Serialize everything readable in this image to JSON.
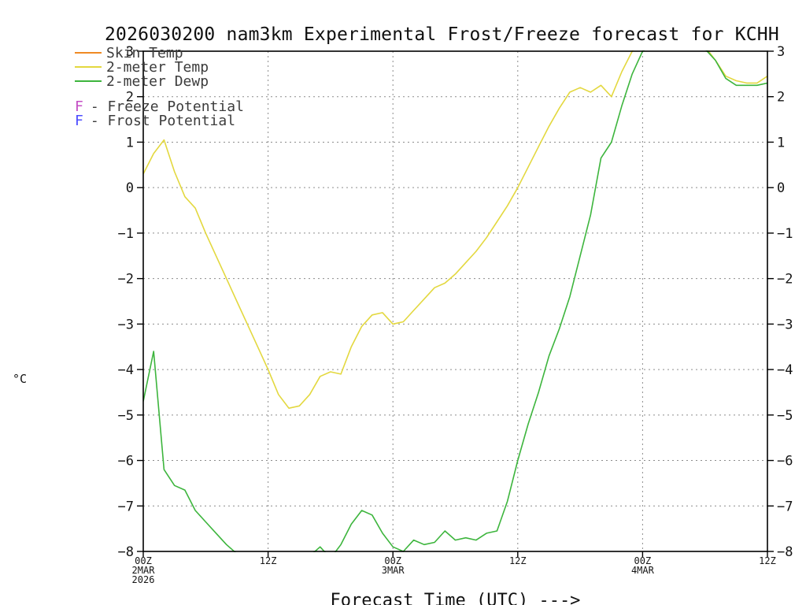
{
  "title": "2026030200 nam3km Experimental Frost/Freeze forecast for KCHH",
  "y_axis_label": "°C",
  "x_axis_label": "Forecast Time (UTC) --->",
  "legend": {
    "series": [
      {
        "label": "Skin Temp",
        "color": "#ef8a24"
      },
      {
        "label": "2-meter Temp",
        "color": "#e3d83f"
      },
      {
        "label": "2-meter Dewp",
        "color": "#3db53d"
      }
    ],
    "flags": [
      {
        "symbol": "F",
        "label": "- Freeze Potential",
        "color": "#c44ec4"
      },
      {
        "symbol": "F",
        "label": "- Frost Potential",
        "color": "#4d4dff"
      }
    ]
  },
  "axes": {
    "ylim": [
      -8,
      3
    ],
    "xlim_hours": [
      0,
      60
    ],
    "y_ticks": [
      3,
      2,
      1,
      0,
      -1,
      -2,
      -3,
      -4,
      -5,
      -6,
      -7,
      -8
    ],
    "x_ticks": [
      {
        "hour": 0,
        "label": "00Z",
        "date": "2MAR",
        "year": "2026"
      },
      {
        "hour": 12,
        "label": "12Z"
      },
      {
        "hour": 24,
        "label": "00Z",
        "date": "3MAR"
      },
      {
        "hour": 36,
        "label": "12Z"
      },
      {
        "hour": 48,
        "label": "00Z",
        "date": "4MAR"
      },
      {
        "hour": 60,
        "label": "12Z"
      }
    ]
  },
  "style": {
    "grid_color": "#8c8c8c",
    "axis_color": "#000000",
    "tick_text_color": "#141414",
    "legend_text_color": "#3c3c3c"
  },
  "chart_data": {
    "type": "line",
    "title": "2026030200 nam3km Experimental Frost/Freeze forecast for KCHH",
    "xlabel": "Forecast Time (UTC)",
    "ylabel": "°C",
    "ylim": [
      -8,
      3
    ],
    "grid": "dashed",
    "legend_position": "top-left",
    "x_unit": "forecast hour (00Z 2MAR 2026 through 12Z 4MAR 2026)",
    "x": [
      0,
      1,
      2,
      3,
      4,
      5,
      6,
      7,
      8,
      9,
      10,
      11,
      12,
      13,
      14,
      15,
      16,
      17,
      18,
      19,
      20,
      21,
      22,
      23,
      24,
      25,
      26,
      27,
      28,
      29,
      30,
      31,
      32,
      33,
      34,
      35,
      36,
      37,
      38,
      39,
      40,
      41,
      42,
      43,
      44,
      45,
      46,
      47,
      48,
      49,
      50,
      51,
      52,
      53,
      54,
      55,
      56,
      57,
      58,
      59,
      60
    ],
    "series": [
      {
        "id": "temp-2m",
        "name": "2-meter Temp",
        "color": "#e3d83f",
        "values": [
          0.3,
          0.75,
          1.05,
          0.35,
          -0.2,
          -0.45,
          -1.0,
          -1.5,
          -2.0,
          -2.5,
          -3.0,
          -3.5,
          -4.0,
          -4.55,
          -4.85,
          -4.8,
          -4.55,
          -4.15,
          -4.05,
          -4.1,
          -3.5,
          -3.05,
          -2.8,
          -2.75,
          -3.0,
          -2.95,
          -2.7,
          -2.45,
          -2.2,
          -2.1,
          -1.9,
          -1.65,
          -1.4,
          -1.1,
          -0.75,
          -0.4,
          0.0,
          0.45,
          0.9,
          1.35,
          1.75,
          2.1,
          2.2,
          2.1,
          2.25,
          2.0,
          2.55,
          3.0,
          3.25,
          3.35,
          3.4,
          3.4,
          3.35,
          3.3,
          3.1,
          2.8,
          2.45,
          2.35,
          2.3,
          2.3,
          2.45
        ]
      },
      {
        "id": "dewp-2m",
        "name": "2-meter Dewp",
        "color": "#3db53d",
        "values": [
          -4.7,
          -3.6,
          -6.2,
          -6.55,
          -6.65,
          -7.1,
          -7.35,
          -7.6,
          -7.85,
          -8.05,
          -8.3,
          -8.45,
          -8.5,
          -8.45,
          -8.35,
          -8.25,
          -8.1,
          -7.9,
          -8.15,
          -7.85,
          -7.4,
          -7.1,
          -7.2,
          -7.6,
          -7.9,
          -8.0,
          -7.75,
          -7.85,
          -7.8,
          -7.55,
          -7.75,
          -7.7,
          -7.75,
          -7.6,
          -7.55,
          -6.9,
          -6.0,
          -5.2,
          -4.5,
          -3.7,
          -3.1,
          -2.4,
          -1.5,
          -0.6,
          0.65,
          1.0,
          1.8,
          2.5,
          3.0,
          3.15,
          3.25,
          3.25,
          3.2,
          3.15,
          3.05,
          2.8,
          2.4,
          2.25,
          2.25,
          2.25,
          2.3
        ]
      }
    ],
    "note_series_not_visible": "Skin Temp appears in legend but no orange curve is visible in the plot area"
  }
}
